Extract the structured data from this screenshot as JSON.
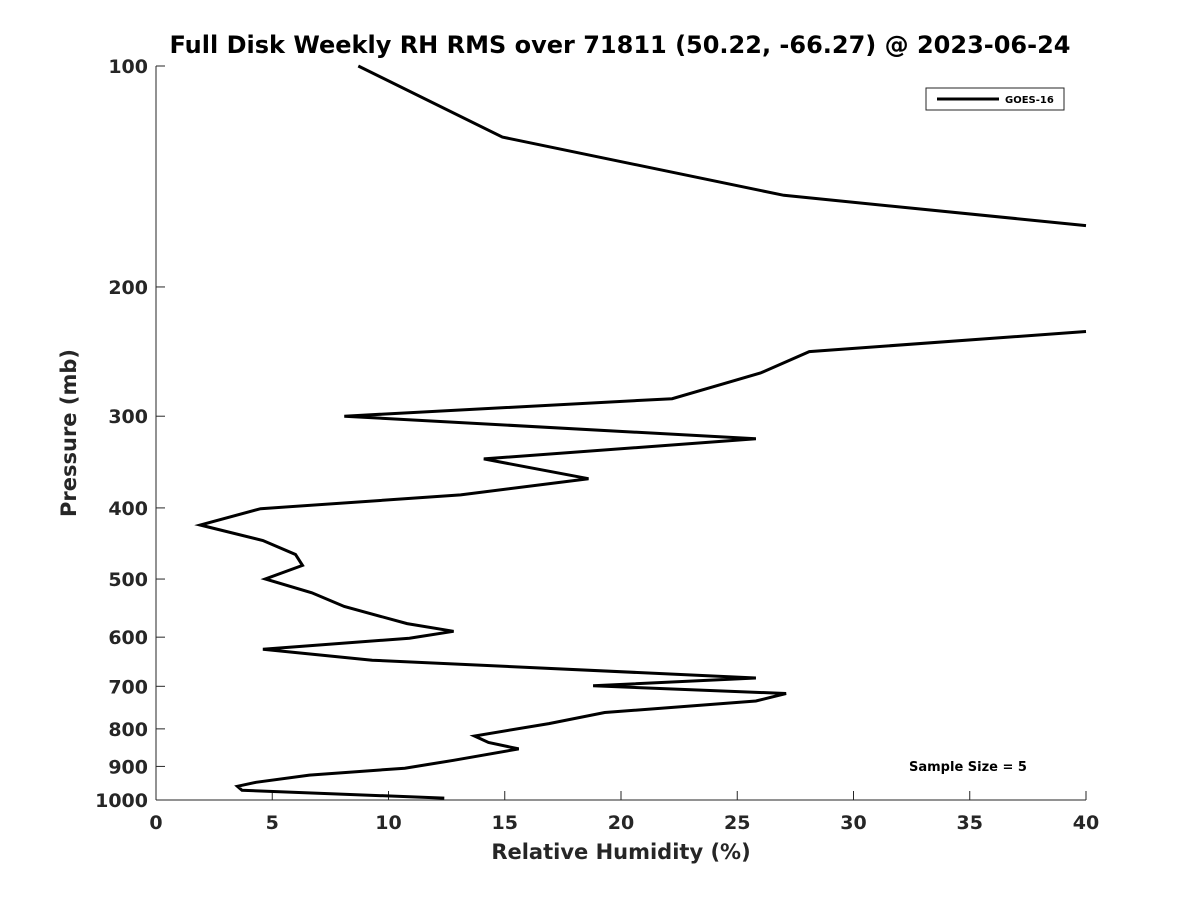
{
  "chart_data": {
    "type": "line",
    "title": "Full Disk Weekly RH RMS over 71811 (50.22, -66.27) @ 2023-06-24",
    "xlabel": "Relative Humidity (%)",
    "ylabel": "Pressure (mb)",
    "xlim": [
      0,
      40
    ],
    "ylim": [
      1000,
      100
    ],
    "y_scale": "log",
    "y_reversed": true,
    "x_ticks": [
      0,
      5,
      10,
      15,
      20,
      25,
      30,
      35,
      40
    ],
    "y_ticks": [
      100,
      200,
      300,
      400,
      500,
      600,
      700,
      800,
      900,
      1000
    ],
    "grid": false,
    "legend_position": "top-right",
    "annotation": "Sample Size = 5",
    "series": [
      {
        "name": "GOES-16",
        "color": "#000000",
        "segments": [
          {
            "x": [
              8.7,
              14.9,
              27.0,
              40.0
            ],
            "y": [
              100,
              125,
              150,
              165
            ]
          },
          {
            "x": [
              40.0,
              28.1,
              26.0,
              22.2,
              8.1,
              25.8,
              14.1,
              18.6,
              13.1,
              4.5,
              1.9,
              4.6,
              6.0,
              6.3,
              4.7,
              6.7,
              8.1,
              10.8,
              12.8,
              10.9,
              4.6,
              9.3,
              25.8,
              18.8,
              27.1,
              25.8,
              19.3,
              16.9,
              13.7,
              14.3,
              15.6,
              12.8,
              10.7,
              6.6,
              4.3,
              3.5,
              3.7,
              12.4
            ],
            "y": [
              230,
              245,
              262,
              284,
              300,
              322,
              343,
              365,
              384,
              401,
              422,
              443,
              463,
              479,
              500,
              522,
              545,
              575,
              589,
              602,
              623,
              645,
              682,
              699,
              716,
              733,
              760,
              787,
              818,
              835,
              852,
              883,
              905,
              925,
              946,
              958,
              970,
              994
            ]
          }
        ]
      }
    ]
  }
}
